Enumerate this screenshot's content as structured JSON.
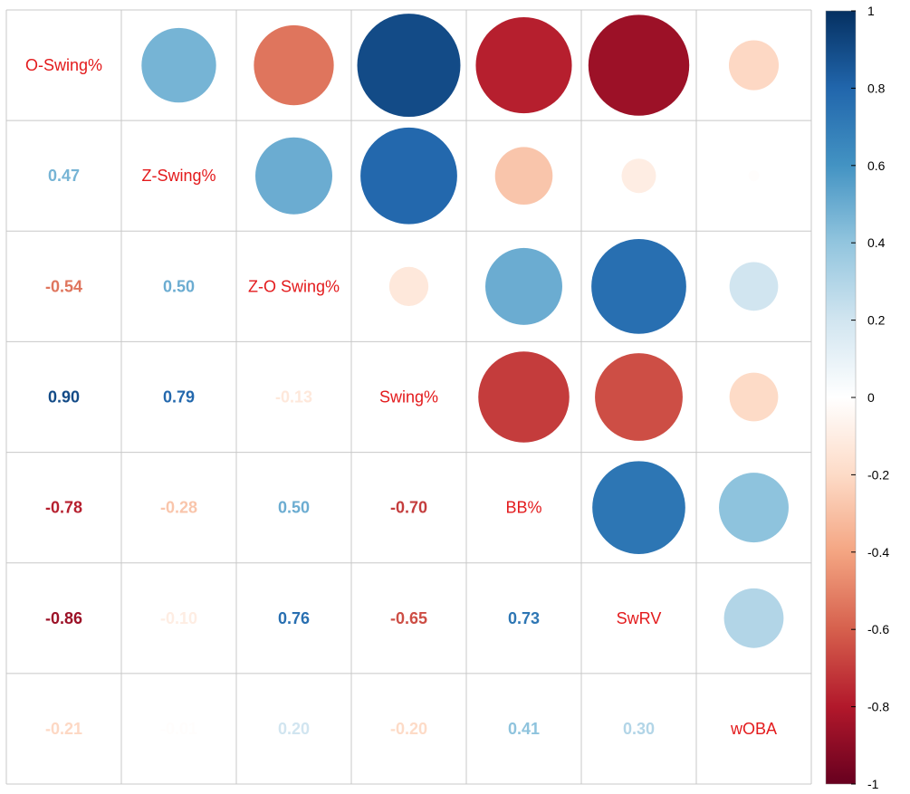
{
  "chart_data": {
    "type": "heatmap",
    "variables": [
      "O-Swing%",
      "Z-Swing%",
      "Z-O Swing%",
      "Swing%",
      "BB%",
      "SwRV",
      "wOBA"
    ],
    "correlation_matrix": [
      [
        1.0,
        0.47,
        -0.54,
        0.9,
        -0.78,
        -0.86,
        -0.21
      ],
      [
        0.47,
        1.0,
        0.5,
        0.79,
        -0.28,
        -0.1,
        -0.01
      ],
      [
        -0.54,
        0.5,
        1.0,
        -0.13,
        0.5,
        0.76,
        0.2
      ],
      [
        0.9,
        0.79,
        -0.13,
        1.0,
        -0.7,
        -0.65,
        -0.2
      ],
      [
        -0.78,
        -0.28,
        0.5,
        -0.7,
        1.0,
        0.73,
        0.41
      ],
      [
        -0.86,
        -0.1,
        0.76,
        -0.65,
        0.73,
        1.0,
        0.3
      ],
      [
        -0.21,
        -0.01,
        0.2,
        -0.2,
        0.41,
        0.3,
        1.0
      ]
    ],
    "lower_triangle_labels": [
      [
        "0.47"
      ],
      [
        "-0.54",
        "0.50"
      ],
      [
        "0.90",
        "0.79",
        "-0.13"
      ],
      [
        "-0.78",
        "-0.28",
        "0.50",
        "-0.70"
      ],
      [
        "-0.86",
        "-0.10",
        "0.76",
        "-0.65",
        "0.73"
      ],
      [
        "-0.21",
        "-0.01",
        "0.20",
        "-0.20",
        "0.41",
        "0.30"
      ]
    ],
    "upper_triangle_method": "circle",
    "lower_triangle_method": "number",
    "diagonal_label_color": "#E31A1C",
    "colorbar": {
      "range": [
        -1,
        1
      ],
      "ticks": [
        "1",
        "0.8",
        "0.6",
        "0.4",
        "0.2",
        "0",
        "-0.2",
        "-0.4",
        "-0.6",
        "-0.8",
        "-1"
      ],
      "colors": [
        "#67001F",
        "#B2182B",
        "#D6604D",
        "#F4A582",
        "#FDDBC7",
        "#FFFFFF",
        "#D1E5F0",
        "#92C5DE",
        "#4393C3",
        "#2166AC",
        "#053061"
      ]
    },
    "grid": true,
    "legend_position": "right"
  }
}
